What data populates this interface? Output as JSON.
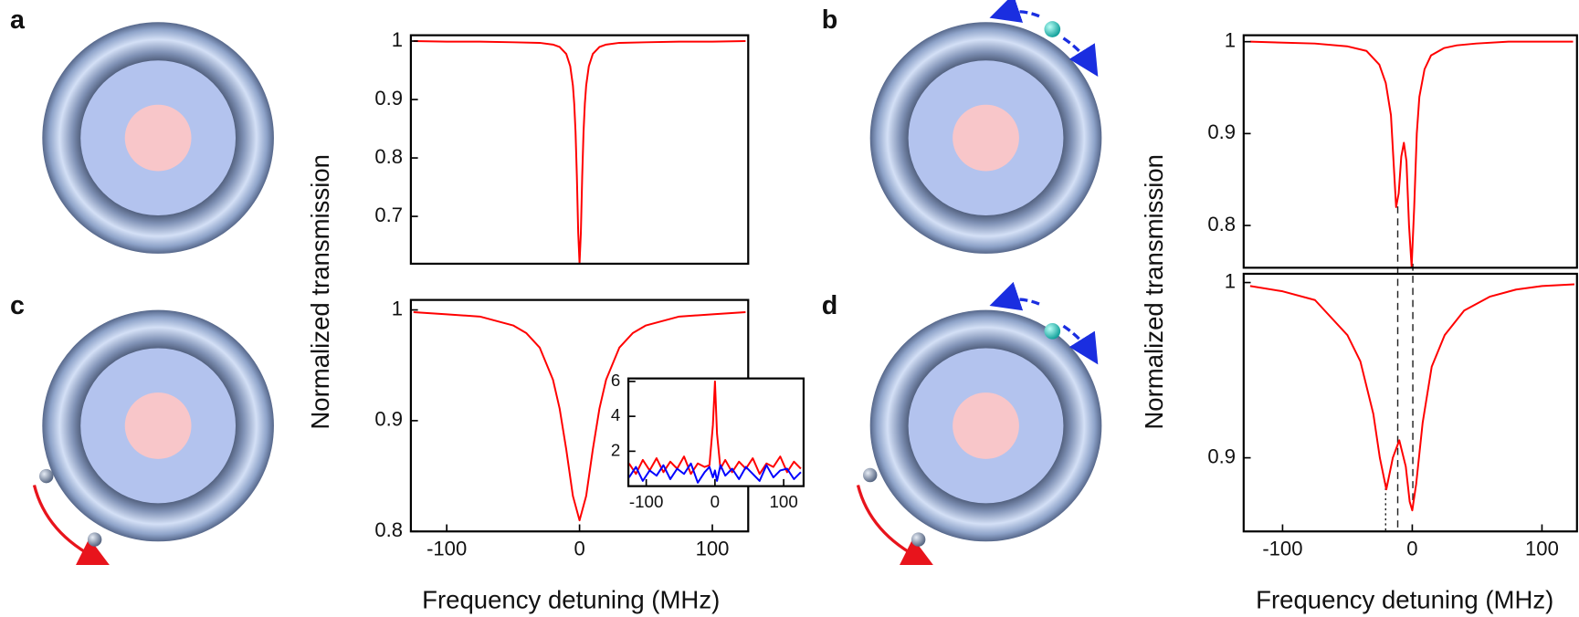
{
  "chart_data": [
    {
      "type": "line",
      "panel_label": "a",
      "ylabel": "Normalized transmission",
      "xlim": [
        -127,
        127
      ],
      "ylim": [
        0.619,
        1.01
      ],
      "yticks": [
        0.7,
        0.8,
        0.9,
        1
      ],
      "x": [
        -125,
        -100,
        -75,
        -50,
        -30,
        -20,
        -15,
        -10,
        -7,
        -5,
        -4,
        -3,
        -2,
        -1,
        0,
        1,
        2,
        3,
        4,
        5,
        7,
        10,
        15,
        20,
        30,
        50,
        75,
        100,
        125
      ],
      "series": [
        {
          "color": "#ff0000",
          "values": [
            1.0,
            0.999,
            0.999,
            0.998,
            0.997,
            0.994,
            0.99,
            0.978,
            0.957,
            0.924,
            0.893,
            0.844,
            0.768,
            0.672,
            0.62,
            0.672,
            0.768,
            0.844,
            0.893,
            0.924,
            0.957,
            0.978,
            0.99,
            0.994,
            0.997,
            0.998,
            0.999,
            0.999,
            1.0
          ]
        }
      ]
    },
    {
      "type": "line",
      "panel_label": "b",
      "ylabel": "Normalized transmission",
      "xlim": [
        -130,
        128
      ],
      "ylim": [
        0.754,
        1.007
      ],
      "yticks": [
        0.8,
        0.9,
        1
      ],
      "x": [
        -125,
        -75,
        -50,
        -35,
        -25,
        -20,
        -16,
        -14,
        -12,
        -10,
        -8,
        -6,
        -4,
        -2,
        0,
        2,
        4,
        6,
        10,
        15,
        25,
        35,
        50,
        75,
        125
      ],
      "series": [
        {
          "color": "#ff0000",
          "values": [
            1.0,
            0.998,
            0.995,
            0.99,
            0.975,
            0.955,
            0.92,
            0.87,
            0.82,
            0.835,
            0.875,
            0.89,
            0.87,
            0.8,
            0.755,
            0.82,
            0.9,
            0.94,
            0.97,
            0.985,
            0.993,
            0.996,
            0.998,
            1.0,
            1.0
          ]
        }
      ]
    },
    {
      "type": "line",
      "panel_label": "c",
      "xlabel": "Frequency detuning (MHz)",
      "xlim": [
        -127,
        127
      ],
      "ylim": [
        0.8,
        1.009
      ],
      "xticks": [
        -100,
        0,
        100
      ],
      "yticks": [
        0.8,
        0.9,
        1
      ],
      "x": [
        -125,
        -100,
        -75,
        -50,
        -40,
        -30,
        -20,
        -15,
        -10,
        -5,
        0,
        5,
        10,
        15,
        20,
        30,
        40,
        50,
        75,
        100,
        125
      ],
      "series": [
        {
          "color": "#ff0000",
          "values": [
            0.998,
            0.996,
            0.994,
            0.986,
            0.979,
            0.966,
            0.937,
            0.911,
            0.874,
            0.832,
            0.81,
            0.832,
            0.874,
            0.911,
            0.937,
            0.966,
            0.979,
            0.986,
            0.994,
            0.996,
            0.998
          ]
        }
      ]
    },
    {
      "type": "line",
      "xlim": [
        -126,
        129
      ],
      "ylim": [
        0,
        6.17
      ],
      "xticks": [
        -100,
        0,
        100
      ],
      "yticks": [
        2,
        4,
        6
      ],
      "x": [
        -125,
        -115,
        -105,
        -95,
        -85,
        -75,
        -65,
        -55,
        -45,
        -35,
        -25,
        -15,
        -8,
        -3,
        0,
        3,
        8,
        15,
        25,
        35,
        45,
        55,
        65,
        75,
        85,
        95,
        105,
        115,
        125
      ],
      "series": [
        {
          "color": "#ff0000",
          "values": [
            1.3,
            0.7,
            1.5,
            0.9,
            1.6,
            0.8,
            1.4,
            1.0,
            1.7,
            0.7,
            1.3,
            1.1,
            1.2,
            3.5,
            6.0,
            3.0,
            1.0,
            1.5,
            0.8,
            1.4,
            1.0,
            1.6,
            0.7,
            1.3,
            1.1,
            1.7,
            0.8,
            1.4,
            1.0
          ]
        },
        {
          "color": "#0000ff",
          "values": [
            0.5,
            1.1,
            0.3,
            0.9,
            0.6,
            1.2,
            0.4,
            1.0,
            0.7,
            1.3,
            0.2,
            0.8,
            1.1,
            0.5,
            0.9,
            0.3,
            1.2,
            0.6,
            1.0,
            0.4,
            1.1,
            0.7,
            0.3,
            1.2,
            0.5,
            0.9,
            1.0,
            0.4,
            0.8
          ]
        }
      ]
    },
    {
      "type": "line",
      "panel_label": "d",
      "xlabel": "Frequency detuning (MHz)",
      "xlim": [
        -130,
        127
      ],
      "ylim": [
        0.858,
        1.005
      ],
      "xticks": [
        -100,
        0,
        100
      ],
      "yticks": [
        0.9,
        1
      ],
      "x": [
        -125,
        -100,
        -75,
        -50,
        -40,
        -30,
        -25,
        -20,
        -15,
        -10,
        -5,
        -2,
        0,
        3,
        8,
        15,
        25,
        40,
        60,
        80,
        100,
        125
      ],
      "series": [
        {
          "color": "#ff0000",
          "values": [
            0.998,
            0.995,
            0.99,
            0.97,
            0.955,
            0.925,
            0.9,
            0.882,
            0.9,
            0.91,
            0.895,
            0.875,
            0.87,
            0.885,
            0.92,
            0.952,
            0.97,
            0.984,
            0.992,
            0.996,
            0.998,
            0.999
          ]
        }
      ]
    }
  ]
}
